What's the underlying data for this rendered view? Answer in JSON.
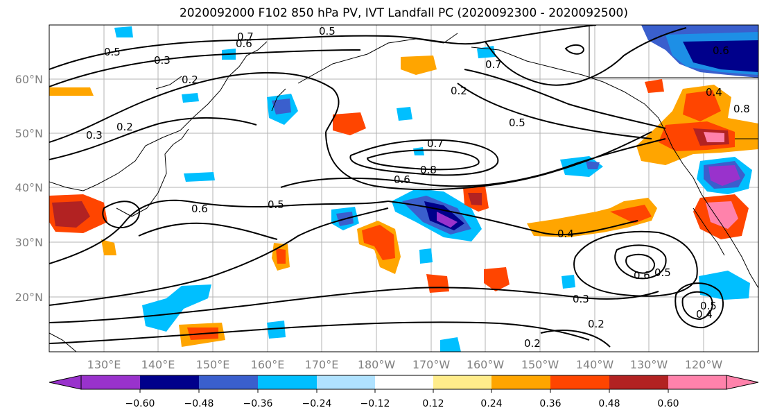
{
  "title": "2020092000 F102 850 hPa PV, IVT Landfall PC (2020092300 - 2020092500)",
  "map": {
    "lat_labels": [
      "60°N",
      "50°N",
      "40°N",
      "30°N",
      "20°N"
    ],
    "lon_labels": [
      "130°E",
      "140°E",
      "150°E",
      "160°E",
      "170°E",
      "180°W",
      "170°W",
      "160°W",
      "150°W",
      "140°W",
      "130°W",
      "120°W"
    ],
    "contour_labels": [
      "0.7",
      "0.5",
      "0.6",
      "0.5",
      "0.3",
      "0.2",
      "0.2",
      "0.3",
      "0.6",
      "0.5",
      "0.7",
      "0.8",
      "0.6",
      "0.5",
      "0.4",
      "0.6",
      "0.5",
      "0.3",
      "0.2",
      "0.2",
      "0.7",
      "0.6",
      "0.8",
      "0.4",
      "0.5",
      "0.4",
      "0.2"
    ]
  },
  "colorbar": {
    "tick_labels": [
      "−0.60",
      "−0.48",
      "−0.36",
      "−0.24",
      "−0.12",
      "0.12",
      "0.24",
      "0.36",
      "0.48",
      "0.60"
    ],
    "colors": [
      "#9932cc",
      "#00008b",
      "#3a5fcd",
      "#00bfff",
      "#b0e2ff",
      "#ffffff",
      "#ffec8b",
      "#ffa500",
      "#ff4500",
      "#b22222",
      "#ff82ab",
      "#ffc0e0"
    ]
  }
}
